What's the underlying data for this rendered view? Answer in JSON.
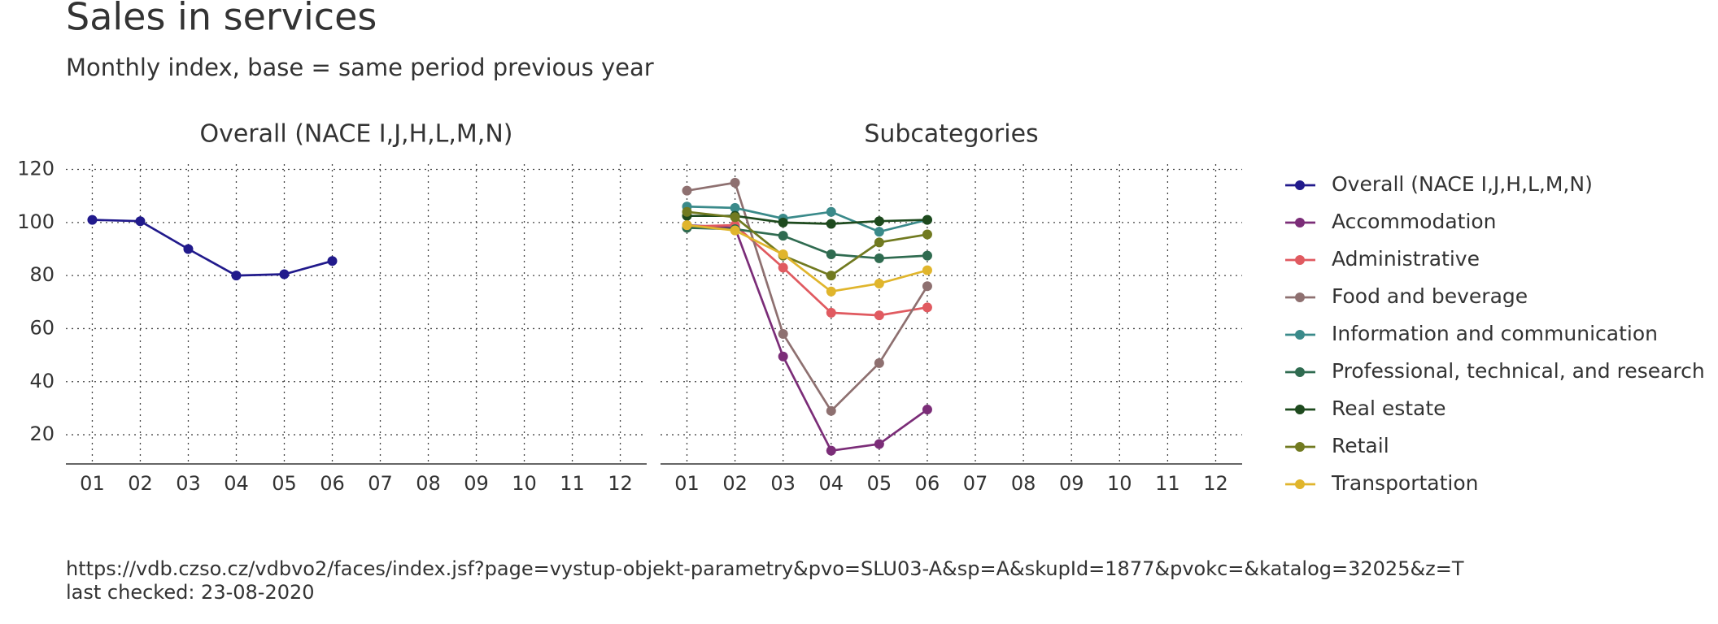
{
  "title": "Sales in services",
  "subtitle": "Monthly index, base = same period previous year",
  "source": "https://vdb.czso.cz/vdbvo2/faces/index.jsf?page=vystup-objekt-parametry&pvo=SLU03-A&sp=A&skupId=1877&pvokc=&katalog=32025&z=T",
  "note": "last checked: 23-08-2020",
  "chart_data": [
    {
      "type": "line",
      "title": "Overall (NACE I,J,H,L,M,N)",
      "categories": [
        "01",
        "02",
        "03",
        "04",
        "05",
        "06",
        "07",
        "08",
        "09",
        "10",
        "11",
        "12"
      ],
      "ylim": [
        9,
        122
      ],
      "yticks": [
        20,
        40,
        60,
        80,
        100,
        120
      ],
      "grid": true,
      "series": [
        {
          "name": "Overall (NACE I,J,H,L,M,N)",
          "color": "#211a8c",
          "values": [
            101,
            100.5,
            90,
            80,
            80.5,
            85.5,
            null,
            null,
            null,
            null,
            null,
            null
          ]
        }
      ]
    },
    {
      "type": "line",
      "title": "Subcategories",
      "categories": [
        "01",
        "02",
        "03",
        "04",
        "05",
        "06",
        "07",
        "08",
        "09",
        "10",
        "11",
        "12"
      ],
      "ylim": [
        9,
        122
      ],
      "yticks": [
        20,
        40,
        60,
        80,
        100,
        120
      ],
      "grid": true,
      "legend": "right",
      "series": [
        {
          "name": "Accommodation",
          "color": "#7b2d78",
          "values": [
            99,
            98,
            49.5,
            14,
            16.5,
            29.5,
            null,
            null,
            null,
            null,
            null,
            null
          ]
        },
        {
          "name": "Administrative",
          "color": "#e05a60",
          "values": [
            98.5,
            99,
            83,
            66,
            65,
            68,
            null,
            null,
            null,
            null,
            null,
            null
          ]
        },
        {
          "name": "Food and beverage",
          "color": "#8e7070",
          "values": [
            112,
            115,
            58,
            29,
            47,
            76,
            null,
            null,
            null,
            null,
            null,
            null
          ]
        },
        {
          "name": "Information and communication",
          "color": "#3a8a8a",
          "values": [
            106,
            105.5,
            101.5,
            104,
            96.5,
            101,
            null,
            null,
            null,
            null,
            null,
            null
          ]
        },
        {
          "name": "Professional, technical, and research",
          "color": "#2f6b50",
          "values": [
            98,
            97.5,
            95,
            88,
            86.5,
            87.5,
            null,
            null,
            null,
            null,
            null,
            null
          ]
        },
        {
          "name": "Real estate",
          "color": "#1e4a1e",
          "values": [
            102.5,
            102.5,
            100,
            99.5,
            100.5,
            101,
            null,
            null,
            null,
            null,
            null,
            null
          ]
        },
        {
          "name": "Retail",
          "color": "#717a20",
          "values": [
            104,
            102,
            87.5,
            80,
            92.5,
            95.5,
            null,
            null,
            null,
            null,
            null,
            null
          ]
        },
        {
          "name": "Transportation",
          "color": "#e0b52c",
          "values": [
            99,
            97,
            88,
            74,
            77,
            82,
            null,
            null,
            null,
            null,
            null,
            null
          ]
        }
      ]
    }
  ]
}
